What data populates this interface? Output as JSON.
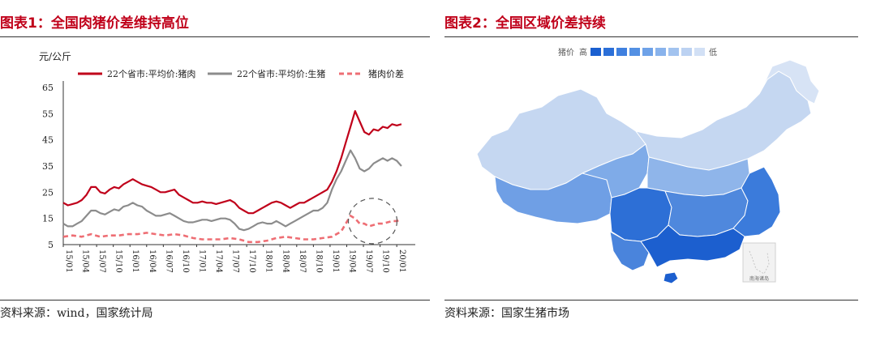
{
  "panel1": {
    "title": "图表1：全国肉猪价差维持高位",
    "source": "资料来源：wind，国家统计局",
    "chart_data": {
      "type": "line",
      "ylabel": "元/公斤",
      "ylim": [
        5,
        65
      ],
      "yticks": [
        5,
        15,
        25,
        35,
        45,
        55,
        65
      ],
      "xticks": [
        "15/01",
        "15/04",
        "15/07",
        "15/10",
        "16/01",
        "16/04",
        "16/07",
        "16/10",
        "17/01",
        "17/04",
        "17/07",
        "17/10",
        "18/01",
        "18/04",
        "18/07",
        "18/10",
        "19/01",
        "19/04",
        "19/07",
        "19/10",
        "20/01"
      ],
      "legend_position": "top",
      "series": [
        {
          "name": "22个省市:平均价:猪肉",
          "color": "#c0001a",
          "style": "solid",
          "values": [
            [
              0,
              21
            ],
            [
              0.5,
              20
            ],
            [
              1,
              20.5
            ],
            [
              1.5,
              21
            ],
            [
              2,
              22
            ],
            [
              2.5,
              24
            ],
            [
              3,
              27
            ],
            [
              3.5,
              27
            ],
            [
              4,
              25
            ],
            [
              4.5,
              24.5
            ],
            [
              5,
              26
            ],
            [
              5.5,
              27
            ],
            [
              6,
              26.5
            ],
            [
              6.5,
              28
            ],
            [
              7,
              29
            ],
            [
              7.5,
              30
            ],
            [
              8,
              29
            ],
            [
              8.5,
              28
            ],
            [
              9,
              27.5
            ],
            [
              9.5,
              27
            ],
            [
              10,
              26
            ],
            [
              10.5,
              25
            ],
            [
              11,
              25
            ],
            [
              11.5,
              25.5
            ],
            [
              12,
              26
            ],
            [
              12.5,
              24
            ],
            [
              13,
              23
            ],
            [
              13.5,
              22
            ],
            [
              14,
              21
            ],
            [
              14.5,
              21
            ],
            [
              15,
              21.5
            ],
            [
              15.5,
              21
            ],
            [
              16,
              21
            ],
            [
              16.5,
              20.5
            ],
            [
              17,
              21
            ],
            [
              17.5,
              21.5
            ],
            [
              18,
              22
            ],
            [
              18.5,
              21
            ],
            [
              19,
              19
            ],
            [
              19.5,
              18
            ],
            [
              20,
              17
            ],
            [
              20.5,
              17
            ],
            [
              21,
              18
            ],
            [
              21.5,
              19
            ],
            [
              22,
              20
            ],
            [
              22.5,
              21
            ],
            [
              23,
              21.5
            ],
            [
              23.5,
              21
            ],
            [
              24,
              20
            ],
            [
              24.5,
              19
            ],
            [
              25,
              20
            ],
            [
              25.5,
              21
            ],
            [
              26,
              21
            ],
            [
              26.5,
              22
            ],
            [
              27,
              23
            ],
            [
              27.5,
              24
            ],
            [
              28,
              25
            ],
            [
              28.5,
              26
            ],
            [
              29,
              29
            ],
            [
              29.5,
              33
            ],
            [
              30,
              38
            ],
            [
              30.5,
              44
            ],
            [
              31,
              50
            ],
            [
              31.5,
              56
            ],
            [
              32,
              52
            ],
            [
              32.5,
              48
            ],
            [
              33,
              47
            ],
            [
              33.5,
              49
            ],
            [
              34,
              48.5
            ],
            [
              34.5,
              50
            ],
            [
              35,
              49.5
            ],
            [
              35.5,
              51
            ],
            [
              36,
              50.5
            ],
            [
              36.5,
              51
            ]
          ]
        },
        {
          "name": "22个省市:平均价:生猪",
          "color": "#8c8c8c",
          "style": "solid",
          "values": [
            [
              0,
              13
            ],
            [
              0.5,
              12
            ],
            [
              1,
              12
            ],
            [
              1.5,
              13
            ],
            [
              2,
              14
            ],
            [
              2.5,
              16
            ],
            [
              3,
              18
            ],
            [
              3.5,
              18
            ],
            [
              4,
              17
            ],
            [
              4.5,
              16.5
            ],
            [
              5,
              17.5
            ],
            [
              5.5,
              18.5
            ],
            [
              6,
              18
            ],
            [
              6.5,
              19.5
            ],
            [
              7,
              20
            ],
            [
              7.5,
              21
            ],
            [
              8,
              20
            ],
            [
              8.5,
              19.5
            ],
            [
              9,
              18
            ],
            [
              9.5,
              17
            ],
            [
              10,
              16
            ],
            [
              10.5,
              16
            ],
            [
              11,
              16.5
            ],
            [
              11.5,
              17
            ],
            [
              12,
              16
            ],
            [
              12.5,
              15
            ],
            [
              13,
              14
            ],
            [
              13.5,
              13.5
            ],
            [
              14,
              13.5
            ],
            [
              14.5,
              14
            ],
            [
              15,
              14.5
            ],
            [
              15.5,
              14.5
            ],
            [
              16,
              14
            ],
            [
              16.5,
              14.5
            ],
            [
              17,
              15
            ],
            [
              17.5,
              15
            ],
            [
              18,
              14.5
            ],
            [
              18.5,
              13
            ],
            [
              19,
              11
            ],
            [
              19.5,
              10.5
            ],
            [
              20,
              11
            ],
            [
              20.5,
              12
            ],
            [
              21,
              13
            ],
            [
              21.5,
              13.5
            ],
            [
              22,
              13
            ],
            [
              22.5,
              13
            ],
            [
              23,
              14
            ],
            [
              23.5,
              13
            ],
            [
              24,
              12
            ],
            [
              24.5,
              13
            ],
            [
              25,
              14
            ],
            [
              25.5,
              15
            ],
            [
              26,
              16
            ],
            [
              26.5,
              17
            ],
            [
              27,
              18
            ],
            [
              27.5,
              18
            ],
            [
              28,
              19
            ],
            [
              28.5,
              21
            ],
            [
              29,
              26
            ],
            [
              29.5,
              30
            ],
            [
              30,
              33
            ],
            [
              30.5,
              37
            ],
            [
              31,
              41
            ],
            [
              31.5,
              38
            ],
            [
              32,
              34
            ],
            [
              32.5,
              33
            ],
            [
              33,
              34
            ],
            [
              33.5,
              36
            ],
            [
              34,
              37
            ],
            [
              34.5,
              38
            ],
            [
              35,
              37
            ],
            [
              35.5,
              38
            ],
            [
              36,
              37
            ],
            [
              36.5,
              35
            ]
          ]
        },
        {
          "name": "猪肉价差",
          "color": "#ee6e74",
          "style": "dashed",
          "values": [
            [
              0,
              8
            ],
            [
              1,
              8.5
            ],
            [
              2,
              8
            ],
            [
              3,
              9
            ],
            [
              4,
              8
            ],
            [
              5,
              8.5
            ],
            [
              6,
              8.5
            ],
            [
              7,
              9
            ],
            [
              8,
              9
            ],
            [
              9,
              9.5
            ],
            [
              10,
              9
            ],
            [
              11,
              8.5
            ],
            [
              12,
              9
            ],
            [
              13,
              8.5
            ],
            [
              14,
              7.5
            ],
            [
              15,
              7
            ],
            [
              16,
              7
            ],
            [
              17,
              7
            ],
            [
              18,
              7.5
            ],
            [
              19,
              7
            ],
            [
              20,
              6
            ],
            [
              21,
              6
            ],
            [
              22,
              6.5
            ],
            [
              23,
              7.5
            ],
            [
              24,
              8
            ],
            [
              25,
              7.5
            ],
            [
              26,
              7
            ],
            [
              27,
              7
            ],
            [
              28,
              7.5
            ],
            [
              29,
              8
            ],
            [
              30,
              10
            ],
            [
              30.5,
              13
            ],
            [
              31,
              16
            ],
            [
              31.5,
              15
            ],
            [
              32,
              13
            ],
            [
              32.5,
              13
            ],
            [
              33,
              12
            ],
            [
              33.5,
              12.5
            ],
            [
              34,
              13
            ],
            [
              34.5,
              13
            ],
            [
              35,
              13.5
            ],
            [
              35.5,
              14
            ],
            [
              36,
              14
            ],
            [
              36.5,
              14.5
            ]
          ]
        }
      ],
      "annotation": "dashed-circle"
    }
  },
  "panel2": {
    "title": "图表2：全国区域价差持续",
    "source": "资料来源：国家生猪市场",
    "legend": {
      "label": "猪价",
      "high": "高",
      "low": "低",
      "swatches": [
        "#1a5fd0",
        "#2b6fd8",
        "#3f80df",
        "#5390e3",
        "#6ea2e8",
        "#89b3ec",
        "#a2c3ef",
        "#bcd2f2",
        "#d2e0f5"
      ]
    },
    "inset_label": "南海诸岛"
  }
}
